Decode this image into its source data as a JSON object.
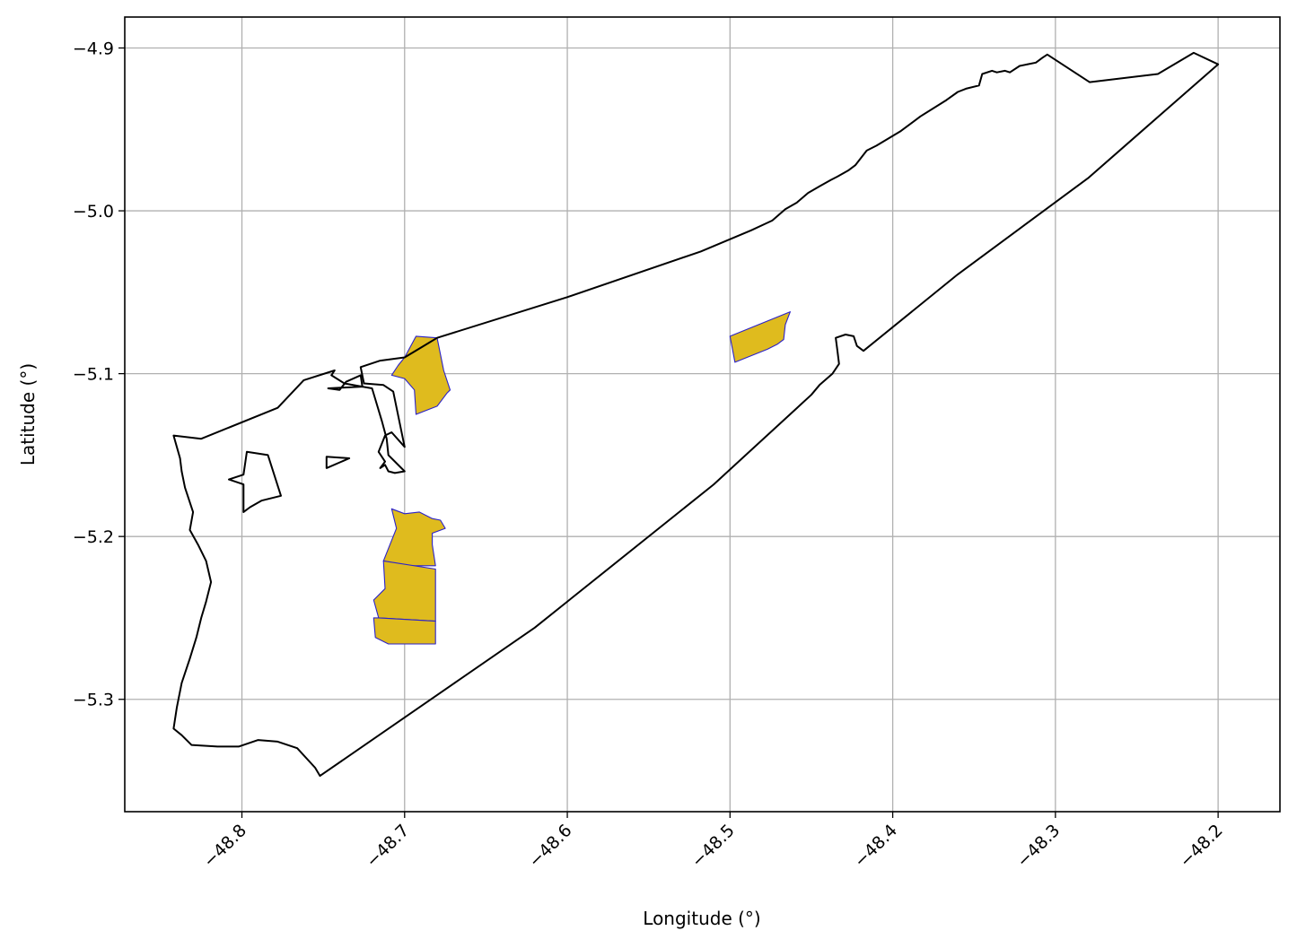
{
  "chart_data": {
    "type": "map",
    "xlabel": "Longitude (°)",
    "ylabel": "Latitude (°)",
    "xlim": [
      -48.872,
      -48.162
    ],
    "ylim": [
      -5.369,
      -4.881
    ],
    "grid": true,
    "x_ticks": [
      {
        "value": -48.8,
        "label": "−48.8"
      },
      {
        "value": -48.7,
        "label": "−48.7"
      },
      {
        "value": -48.6,
        "label": "−48.6"
      },
      {
        "value": -48.5,
        "label": "−48.5"
      },
      {
        "value": -48.4,
        "label": "−48.4"
      },
      {
        "value": -48.3,
        "label": "−48.3"
      },
      {
        "value": -48.2,
        "label": "−48.2"
      }
    ],
    "y_ticks": [
      {
        "value": -4.9,
        "label": "−4.9"
      },
      {
        "value": -5.0,
        "label": "−5.0"
      },
      {
        "value": -5.1,
        "label": "−5.1"
      },
      {
        "value": -5.2,
        "label": "−5.2"
      },
      {
        "value": -5.3,
        "label": "−5.3"
      }
    ],
    "boundary_color": "#000000",
    "highlight_fill": "#dfbb1e",
    "highlight_edge": "#2b22c9",
    "boundary_outer": [
      [
        -48.2,
        -4.91
      ],
      [
        -48.215,
        -4.903
      ],
      [
        -48.237,
        -4.916
      ],
      [
        -48.279,
        -4.921
      ],
      [
        -48.305,
        -4.904
      ],
      [
        -48.308,
        -4.906
      ],
      [
        -48.312,
        -4.909
      ],
      [
        -48.322,
        -4.911
      ],
      [
        -48.328,
        -4.915
      ],
      [
        -48.331,
        -4.914
      ],
      [
        -48.336,
        -4.915
      ],
      [
        -48.339,
        -4.914
      ],
      [
        -48.345,
        -4.916
      ],
      [
        -48.347,
        -4.923
      ],
      [
        -48.355,
        -4.925
      ],
      [
        -48.36,
        -4.927
      ],
      [
        -48.367,
        -4.932
      ],
      [
        -48.383,
        -4.942
      ],
      [
        -48.395,
        -4.951
      ],
      [
        -48.41,
        -4.96
      ],
      [
        -48.416,
        -4.963
      ],
      [
        -48.423,
        -4.972
      ],
      [
        -48.427,
        -4.975
      ],
      [
        -48.434,
        -4.979
      ],
      [
        -48.438,
        -4.981
      ],
      [
        -48.445,
        -4.985
      ],
      [
        -48.452,
        -4.989
      ],
      [
        -48.459,
        -4.995
      ],
      [
        -48.466,
        -4.999
      ],
      [
        -48.474,
        -5.006
      ],
      [
        -48.487,
        -5.012
      ],
      [
        -48.518,
        -5.025
      ],
      [
        -48.6,
        -5.053
      ],
      [
        -48.68,
        -5.078
      ],
      [
        -48.69,
        -5.084
      ],
      [
        -48.7,
        -5.09
      ],
      [
        -48.715,
        -5.092
      ],
      [
        -48.727,
        -5.096
      ],
      [
        -48.725,
        -5.106
      ],
      [
        -48.713,
        -5.107
      ],
      [
        -48.707,
        -5.111
      ],
      [
        -48.7,
        -5.145
      ],
      [
        -48.708,
        -5.136
      ],
      [
        -48.712,
        -5.138
      ],
      [
        -48.716,
        -5.148
      ],
      [
        -48.712,
        -5.154
      ],
      [
        -48.715,
        -5.158
      ],
      [
        -48.712,
        -5.156
      ],
      [
        -48.71,
        -5.16
      ],
      [
        -48.706,
        -5.161
      ],
      [
        -48.7,
        -5.16
      ],
      [
        -48.71,
        -5.15
      ],
      [
        -48.711,
        -5.14
      ],
      [
        -48.714,
        -5.129
      ],
      [
        -48.72,
        -5.109
      ],
      [
        -48.726,
        -5.108
      ],
      [
        -48.737,
        -5.106
      ],
      [
        -48.745,
        -5.101
      ],
      [
        -48.743,
        -5.098
      ],
      [
        -48.762,
        -5.104
      ],
      [
        -48.778,
        -5.121
      ],
      [
        -48.825,
        -5.14
      ],
      [
        -48.842,
        -5.138
      ],
      [
        -48.84,
        -5.145
      ],
      [
        -48.838,
        -5.152
      ],
      [
        -48.837,
        -5.16
      ],
      [
        -48.835,
        -5.17
      ],
      [
        -48.83,
        -5.185
      ],
      [
        -48.832,
        -5.196
      ],
      [
        -48.827,
        -5.205
      ],
      [
        -48.822,
        -5.215
      ],
      [
        -48.819,
        -5.228
      ],
      [
        -48.822,
        -5.24
      ],
      [
        -48.825,
        -5.25
      ],
      [
        -48.828,
        -5.262
      ],
      [
        -48.832,
        -5.275
      ],
      [
        -48.837,
        -5.29
      ],
      [
        -48.84,
        -5.305
      ],
      [
        -48.842,
        -5.318
      ],
      [
        -48.837,
        -5.322
      ],
      [
        -48.831,
        -5.328
      ],
      [
        -48.815,
        -5.329
      ],
      [
        -48.802,
        -5.329
      ],
      [
        -48.79,
        -5.325
      ],
      [
        -48.778,
        -5.326
      ],
      [
        -48.766,
        -5.33
      ],
      [
        -48.755,
        -5.342
      ],
      [
        -48.752,
        -5.347
      ],
      [
        -48.62,
        -5.256
      ],
      [
        -48.51,
        -5.168
      ],
      [
        -48.45,
        -5.113
      ],
      [
        -48.445,
        -5.107
      ],
      [
        -48.437,
        -5.1
      ],
      [
        -48.433,
        -5.094
      ],
      [
        -48.434,
        -5.086
      ],
      [
        -48.435,
        -5.078
      ],
      [
        -48.429,
        -5.076
      ],
      [
        -48.424,
        -5.077
      ],
      [
        -48.422,
        -5.083
      ],
      [
        -48.418,
        -5.086
      ],
      [
        -48.36,
        -5.039
      ],
      [
        -48.28,
        -4.98
      ],
      [
        -48.2,
        -4.91
      ]
    ],
    "boundary_holes": [
      [
        [
          -48.784,
          -5.15
        ],
        [
          -48.776,
          -5.175
        ],
        [
          -48.788,
          -5.178
        ],
        [
          -48.795,
          -5.182
        ],
        [
          -48.799,
          -5.185
        ],
        [
          -48.799,
          -5.168
        ],
        [
          -48.808,
          -5.165
        ],
        [
          -48.799,
          -5.162
        ],
        [
          -48.797,
          -5.148
        ],
        [
          -48.784,
          -5.15
        ]
      ],
      [
        [
          -48.747,
          -5.109
        ],
        [
          -48.74,
          -5.11
        ],
        [
          -48.736,
          -5.105
        ],
        [
          -48.727,
          -5.101
        ],
        [
          -48.726,
          -5.108
        ],
        [
          -48.747,
          -5.109
        ]
      ],
      [
        [
          -48.734,
          -5.152
        ],
        [
          -48.748,
          -5.151
        ],
        [
          -48.748,
          -5.158
        ],
        [
          -48.734,
          -5.152
        ]
      ]
    ],
    "regions": [
      {
        "points": [
          [
            -48.693,
            -5.077
          ],
          [
            -48.68,
            -5.078
          ],
          [
            -48.676,
            -5.098
          ],
          [
            -48.672,
            -5.11
          ],
          [
            -48.674,
            -5.112
          ],
          [
            -48.68,
            -5.12
          ],
          [
            -48.693,
            -5.125
          ],
          [
            -48.694,
            -5.11
          ],
          [
            -48.7,
            -5.103
          ],
          [
            -48.708,
            -5.101
          ],
          [
            -48.704,
            -5.095
          ],
          [
            -48.7,
            -5.09
          ],
          [
            -48.693,
            -5.077
          ]
        ]
      },
      {
        "points": [
          [
            -48.5,
            -5.077
          ],
          [
            -48.497,
            -5.093
          ],
          [
            -48.477,
            -5.085
          ],
          [
            -48.471,
            -5.082
          ],
          [
            -48.467,
            -5.079
          ],
          [
            -48.466,
            -5.07
          ],
          [
            -48.463,
            -5.062
          ],
          [
            -48.5,
            -5.077
          ]
        ]
      },
      {
        "points": [
          [
            -48.708,
            -5.183
          ],
          [
            -48.7,
            -5.186
          ],
          [
            -48.691,
            -5.185
          ],
          [
            -48.683,
            -5.189
          ],
          [
            -48.678,
            -5.19
          ],
          [
            -48.675,
            -5.195
          ],
          [
            -48.683,
            -5.198
          ],
          [
            -48.683,
            -5.205
          ],
          [
            -48.681,
            -5.218
          ],
          [
            -48.697,
            -5.218
          ],
          [
            -48.713,
            -5.215
          ],
          [
            -48.705,
            -5.195
          ],
          [
            -48.708,
            -5.183
          ]
        ]
      },
      {
        "points": [
          [
            -48.713,
            -5.215
          ],
          [
            -48.681,
            -5.22
          ],
          [
            -48.681,
            -5.252
          ],
          [
            -48.716,
            -5.25
          ],
          [
            -48.719,
            -5.239
          ],
          [
            -48.712,
            -5.232
          ],
          [
            -48.713,
            -5.215
          ]
        ]
      },
      {
        "points": [
          [
            -48.716,
            -5.25
          ],
          [
            -48.681,
            -5.252
          ],
          [
            -48.681,
            -5.266
          ],
          [
            -48.71,
            -5.266
          ],
          [
            -48.718,
            -5.262
          ],
          [
            -48.719,
            -5.25
          ],
          [
            -48.716,
            -5.25
          ]
        ]
      }
    ]
  }
}
